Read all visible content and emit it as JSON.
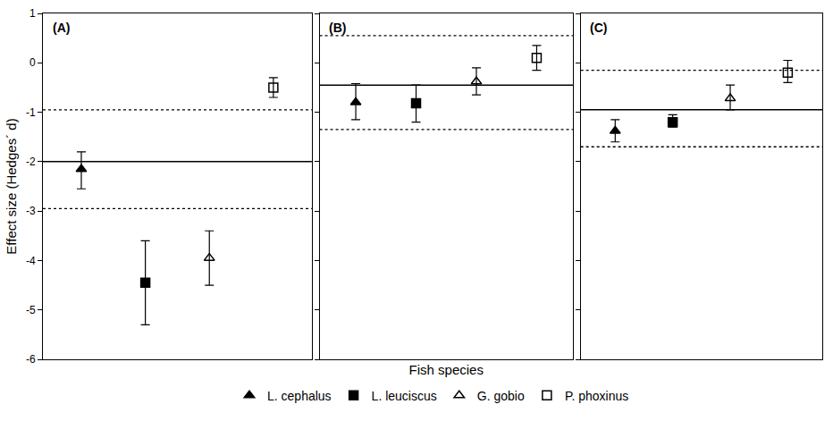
{
  "chart_data": [
    {
      "type": "scatter",
      "title": "(A)",
      "ylabel": "Effect size (Hedges´ d)",
      "categories": [
        null,
        null,
        null,
        null
      ],
      "ylim": [
        -6,
        1
      ],
      "yticks": [
        -6,
        -5,
        -4,
        -3,
        -2,
        -1,
        0,
        1
      ],
      "tick_labels": "y",
      "legend": "bottom",
      "mean_effect": -2.0,
      "ci_low": -2.95,
      "ci_high": -0.95,
      "series": [
        {
          "name": "L. cephalus",
          "color": "#000000",
          "marker": "triangle-up",
          "values": [
            -2.15,
            null,
            null,
            null
          ],
          "error_low": [
            -2.55,
            null,
            null,
            null
          ],
          "error_high": [
            -1.8,
            null,
            null,
            null
          ]
        },
        {
          "name": "L. leuciscus",
          "color": "#000000",
          "marker": "square",
          "values": [
            null,
            -4.45,
            null,
            null
          ],
          "error_low": [
            null,
            -5.3,
            null,
            null
          ],
          "error_high": [
            null,
            -3.6,
            null,
            null
          ]
        },
        {
          "name": "G. gobio",
          "color": "#000000",
          "marker": "triangle-up-open",
          "values": [
            null,
            null,
            -3.95,
            null
          ],
          "error_low": [
            null,
            null,
            -4.5,
            null
          ],
          "error_high": [
            null,
            null,
            -3.4,
            null
          ]
        },
        {
          "name": "P. phoxinus",
          "color": "#000000",
          "marker": "square-open",
          "values": [
            null,
            null,
            null,
            -0.5
          ],
          "error_low": [
            null,
            null,
            null,
            -0.7
          ],
          "error_high": [
            null,
            null,
            null,
            -0.3
          ]
        }
      ]
    },
    {
      "type": "scatter",
      "title": "(B)",
      "xlabel": "Fish species",
      "categories": [
        null,
        null,
        null,
        null
      ],
      "ylim": [
        -6,
        1
      ],
      "yticks": [
        -6,
        -5,
        -4,
        -3,
        -2,
        -1,
        0,
        1
      ],
      "tick_labels": false,
      "mean_effect": -0.45,
      "ci_low": -1.35,
      "ci_high": 0.55,
      "series": [
        {
          "name": "L. cephalus",
          "color": "#000000",
          "marker": "triangle-up",
          "values": [
            -0.8,
            null,
            null,
            null
          ],
          "error_low": [
            -1.15,
            null,
            null,
            null
          ],
          "error_high": [
            -0.42,
            null,
            null,
            null
          ]
        },
        {
          "name": "L. leuciscus",
          "color": "#000000",
          "marker": "square",
          "values": [
            null,
            -0.82,
            null,
            null
          ],
          "error_low": [
            null,
            -1.2,
            null,
            null
          ],
          "error_high": [
            null,
            -0.45,
            null,
            null
          ]
        },
        {
          "name": "G. gobio",
          "color": "#000000",
          "marker": "triangle-up-open",
          "values": [
            null,
            null,
            -0.38,
            null
          ],
          "error_low": [
            null,
            null,
            -0.65,
            null
          ],
          "error_high": [
            null,
            null,
            -0.1,
            null
          ]
        },
        {
          "name": "P. phoxinus",
          "color": "#000000",
          "marker": "square-open",
          "values": [
            null,
            null,
            null,
            0.1
          ],
          "error_low": [
            null,
            null,
            null,
            -0.15
          ],
          "error_high": [
            null,
            null,
            null,
            0.35
          ]
        }
      ]
    },
    {
      "type": "scatter",
      "title": "(C)",
      "categories": [
        null,
        null,
        null,
        null
      ],
      "ylim": [
        -6,
        1
      ],
      "yticks": [
        -6,
        -5,
        -4,
        -3,
        -2,
        -1,
        0,
        1
      ],
      "tick_labels": false,
      "mean_effect": -0.95,
      "ci_low": -1.7,
      "ci_high": -0.15,
      "series": [
        {
          "name": "L. cephalus",
          "color": "#000000",
          "marker": "triangle-up",
          "values": [
            -1.38,
            null,
            null,
            null
          ],
          "error_low": [
            -1.6,
            null,
            null,
            null
          ],
          "error_high": [
            -1.15,
            null,
            null,
            null
          ]
        },
        {
          "name": "L. leuciscus",
          "color": "#000000",
          "marker": "square",
          "values": [
            null,
            -1.2,
            null,
            null
          ],
          "error_low": [
            null,
            -1.3,
            null,
            null
          ],
          "error_high": [
            null,
            -1.05,
            null,
            null
          ]
        },
        {
          "name": "G. gobio",
          "color": "#000000",
          "marker": "triangle-up-open",
          "values": [
            null,
            null,
            -0.72,
            null
          ],
          "error_low": [
            null,
            null,
            -0.95,
            null
          ],
          "error_high": [
            null,
            null,
            -0.45,
            null
          ]
        },
        {
          "name": "P. phoxinus",
          "color": "#000000",
          "marker": "square-open",
          "values": [
            null,
            null,
            null,
            -0.2
          ],
          "error_low": [
            null,
            null,
            null,
            -0.4
          ],
          "error_high": [
            null,
            null,
            null,
            0.05
          ]
        }
      ]
    }
  ]
}
